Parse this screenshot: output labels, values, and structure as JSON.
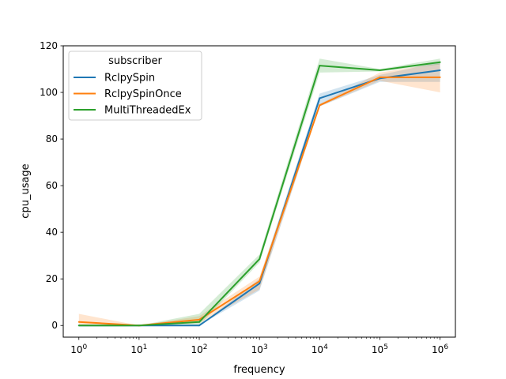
{
  "chart_data": {
    "type": "line",
    "xlabel": "frequency",
    "ylabel": "cpu_usage",
    "x_scale": "log",
    "xlim": [
      0.55,
      1800000.0
    ],
    "ylim": [
      -5,
      120
    ],
    "x": [
      1,
      10,
      100,
      1000,
      10000,
      100000,
      1000000
    ],
    "x_tick_labels": [
      {
        "base": "10",
        "exp": "0"
      },
      {
        "base": "10",
        "exp": "1"
      },
      {
        "base": "10",
        "exp": "2"
      },
      {
        "base": "10",
        "exp": "3"
      },
      {
        "base": "10",
        "exp": "4"
      },
      {
        "base": "10",
        "exp": "5"
      },
      {
        "base": "10",
        "exp": "6"
      }
    ],
    "y_ticks": [
      "0",
      "20",
      "40",
      "60",
      "80",
      "100",
      "120"
    ],
    "legend": {
      "title": "subscriber",
      "position": "upper left"
    },
    "grid": false,
    "series": [
      {
        "name": "RclpySpin",
        "color": "#1f77b4",
        "values": [
          0,
          0,
          0,
          18,
          97.5,
          106,
          109.5
        ],
        "band_low": [
          0,
          0,
          0,
          15,
          94,
          104.5,
          104.5
        ],
        "band_high": [
          0,
          0,
          0,
          20,
          99.5,
          107.5,
          113
        ]
      },
      {
        "name": "RclpySpinOnce",
        "color": "#ff7f0e",
        "values": [
          1.5,
          0,
          2.5,
          19,
          94.5,
          106.5,
          106.5
        ],
        "band_low": [
          0,
          0,
          1,
          15.5,
          94,
          105,
          100
        ],
        "band_high": [
          5,
          0,
          4,
          21,
          95,
          108.5,
          112.5
        ]
      },
      {
        "name": "MultiThreadedEx",
        "color": "#2ca02c",
        "values": [
          0,
          0,
          1.5,
          28.5,
          111.5,
          109.5,
          113
        ],
        "band_low": [
          0,
          0,
          0,
          27,
          108.5,
          109,
          112
        ],
        "band_high": [
          0,
          0,
          5,
          30.5,
          114.5,
          110,
          114.5
        ]
      }
    ]
  }
}
